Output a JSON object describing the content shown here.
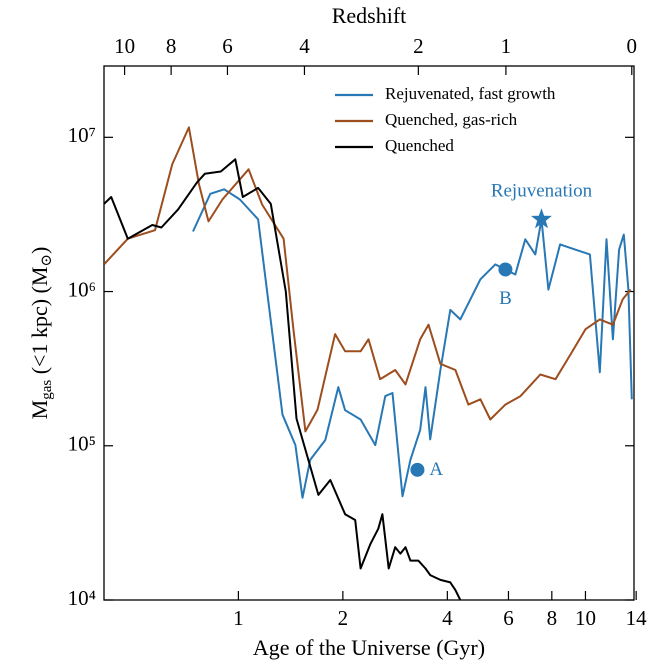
{
  "chart_data": {
    "type": "line",
    "xlabel": "Age of the Universe (Gyr)",
    "x2label": "Redshift",
    "ylabel": [
      "M",
      "gas",
      " (<1 kpc) (M",
      "⊙",
      ")"
    ],
    "xscale": "log",
    "yscale": "log",
    "xlim": [
      0.41,
      13.8
    ],
    "ylim": [
      10000,
      29000000
    ],
    "xticks": [
      1,
      2,
      4,
      6,
      8,
      10,
      14
    ],
    "x2ticks": [
      {
        "value": 0.47,
        "label": "10"
      },
      {
        "value": 0.64,
        "label": "8"
      },
      {
        "value": 0.93,
        "label": "6"
      },
      {
        "value": 1.55,
        "label": "4"
      },
      {
        "value": 3.3,
        "label": "2"
      },
      {
        "value": 5.9,
        "label": "1"
      },
      {
        "value": 13.6,
        "label": "0"
      }
    ],
    "yticks": [
      {
        "value": 10000,
        "label": "10⁴"
      },
      {
        "value": 100000,
        "label": "10⁵"
      },
      {
        "value": 1000000,
        "label": "10⁶"
      },
      {
        "value": 10000000,
        "label": "10⁷"
      }
    ],
    "legend": "upper right",
    "series": [
      {
        "name": "Rejuvenated, fast growth",
        "color": "#2878b5",
        "x": [
          0.74,
          0.83,
          0.91,
          1.01,
          1.14,
          1.34,
          1.46,
          1.53,
          1.61,
          1.78,
          1.94,
          2.03,
          2.25,
          2.48,
          2.65,
          2.78,
          2.97,
          3.13,
          3.34,
          3.46,
          3.57,
          3.82,
          4.08,
          4.36,
          4.66,
          4.98,
          5.5,
          5.88,
          6.28,
          6.71,
          7.17,
          7.47,
          7.82,
          8.45,
          9.34,
          10.3,
          11.0,
          11.5,
          12.0,
          12.5,
          12.9,
          13.3,
          13.6
        ],
        "values": [
          2450000,
          4300000,
          4600000,
          3950000,
          2940000,
          159000,
          101000,
          46000,
          81000,
          109000,
          240000,
          170000,
          148000,
          101000,
          210000,
          220000,
          47000,
          81000,
          127000,
          240000,
          110000,
          310000,
          760000,
          660000,
          890000,
          1200000,
          1500000,
          1390000,
          1290000,
          2180000,
          1740000,
          2940000,
          1030000,
          2020000,
          1870000,
          1740000,
          300000,
          2180000,
          490000,
          1870000,
          2340000,
          1030000,
          200000
        ]
      },
      {
        "name": "Quenched, gas-rich",
        "color": "#9c4e1e",
        "x": [
          0.41,
          0.48,
          0.575,
          0.645,
          0.72,
          0.77,
          0.82,
          0.9,
          1.07,
          1.17,
          1.35,
          1.44,
          1.56,
          1.69,
          1.9,
          2.03,
          2.25,
          2.37,
          2.56,
          2.83,
          3.03,
          3.34,
          3.53,
          3.82,
          4.22,
          4.6,
          4.98,
          5.32,
          5.88,
          6.5,
          7.41,
          8.2,
          9.05,
          10.0,
          11.0,
          12.0,
          12.8,
          13.5
        ],
        "values": [
          1500000,
          2200000,
          2500000,
          6700000,
          11600000,
          4950000,
          2850000,
          3960000,
          6200000,
          3670000,
          2200000,
          570000,
          124000,
          171000,
          530000,
          410000,
          410000,
          490000,
          270000,
          310000,
          250000,
          490000,
          610000,
          340000,
          310000,
          185000,
          200000,
          148000,
          185000,
          210000,
          290000,
          270000,
          390000,
          570000,
          660000,
          610000,
          890000,
          1030000
        ]
      },
      {
        "name": "Quenched",
        "color": "#000000",
        "x": [
          0.41,
          0.43,
          0.48,
          0.565,
          0.6,
          0.67,
          0.76,
          0.8,
          0.89,
          0.98,
          1.03,
          1.14,
          1.24,
          1.37,
          1.47,
          1.7,
          1.84,
          2.03,
          2.17,
          2.25,
          2.4,
          2.53,
          2.6,
          2.71,
          2.83,
          2.93,
          3.03,
          3.13,
          3.3,
          3.46,
          3.57,
          3.82,
          4.08,
          4.22,
          4.36
        ],
        "values": [
          3700000,
          4100000,
          2200000,
          2700000,
          2600000,
          3400000,
          5100000,
          5800000,
          6000000,
          7200000,
          4100000,
          4700000,
          3700000,
          1000000,
          150000,
          48000,
          60000,
          36000,
          33000,
          16000,
          23000,
          29000,
          36000,
          16000,
          22000,
          20000,
          22000,
          18000,
          18000,
          16000,
          14500,
          13500,
          13000,
          11600,
          10000
        ]
      }
    ],
    "annotations": [
      {
        "text": "Rejuvenation",
        "x": 7.47,
        "y": 2940000,
        "marker": "star",
        "position": "above",
        "color": "#2878b5"
      },
      {
        "text": "B",
        "x": 5.88,
        "y": 1390000,
        "marker": "circle",
        "position": "below",
        "color": "#2878b5"
      },
      {
        "text": "A",
        "x": 3.28,
        "y": 69800,
        "marker": "circle",
        "position": "right",
        "color": "#2878b5"
      }
    ]
  }
}
